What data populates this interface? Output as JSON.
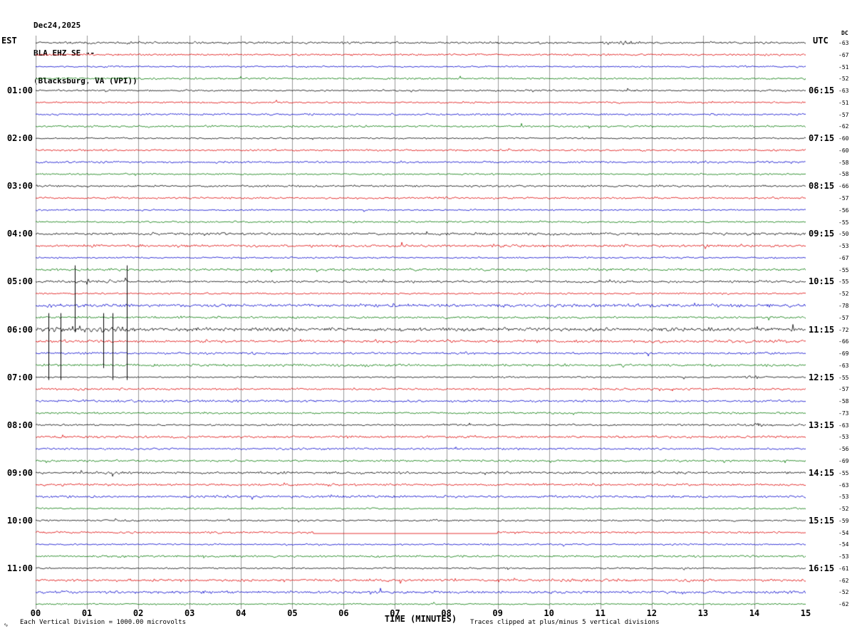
{
  "header": {
    "date": "Dec24,2025",
    "station": "BLA EHZ SE --",
    "location": "(Blacksburg, VA (VPI))"
  },
  "axes": {
    "left_label": "EST",
    "right_label": "UTC",
    "dc_label": "DC",
    "x_axis_title": "TIME (MINUTES)",
    "x_ticks": [
      "00",
      "01",
      "02",
      "03",
      "04",
      "05",
      "06",
      "07",
      "08",
      "09",
      "10",
      "11",
      "12",
      "13",
      "14",
      "15"
    ]
  },
  "footer": {
    "left_note": "Each Vertical Division = 1000.00 microvolts",
    "right_note": "Traces clipped at plus/minus 5 vertical divisions",
    "corner_mark": "∿"
  },
  "colors": {
    "black": "#000000",
    "red": "#dd0000",
    "blue": "#0000cc",
    "green": "#007700",
    "grid": "#999999"
  },
  "chart_data": {
    "type": "line",
    "description": "12-hour helicorder (webicorder) seismogram: 48 traces of 15 minutes each, reading left to right, top to bottom. Trace colors cycle black/red/blue/green. Traces show ambient seismic noise; black vertical event lines appear between 05:00 and 07:00 EST near minutes 0.2-1.8, and the red 10:00 EST trace flatlines between minutes 5.4 and 9.0.",
    "x_range_minutes": [
      0,
      15
    ],
    "noise_seed": 42,
    "rows": [
      {
        "color": "black",
        "dc": "-63"
      },
      {
        "color": "red",
        "dc": "-67"
      },
      {
        "color": "blue",
        "dc": "-51"
      },
      {
        "color": "green",
        "dc": "-52"
      },
      {
        "color": "black",
        "est": "01:00",
        "utc": "06:15",
        "dc": "-63"
      },
      {
        "color": "red",
        "dc": "-51"
      },
      {
        "color": "blue",
        "dc": "-57"
      },
      {
        "color": "green",
        "dc": "-62"
      },
      {
        "color": "black",
        "est": "02:00",
        "utc": "07:15",
        "dc": "-60"
      },
      {
        "color": "red",
        "dc": "-60"
      },
      {
        "color": "blue",
        "dc": "-58"
      },
      {
        "color": "green",
        "dc": "-58"
      },
      {
        "color": "black",
        "est": "03:00",
        "utc": "08:15",
        "dc": "-66"
      },
      {
        "color": "red",
        "dc": "-57"
      },
      {
        "color": "blue",
        "dc": "-56"
      },
      {
        "color": "green",
        "dc": "-55"
      },
      {
        "color": "black",
        "est": "04:00",
        "utc": "09:15",
        "dc": "-50"
      },
      {
        "color": "red",
        "dc": "-53"
      },
      {
        "color": "blue",
        "dc": "-67"
      },
      {
        "color": "green",
        "dc": "-55"
      },
      {
        "color": "black",
        "est": "05:00",
        "utc": "10:15",
        "dc": "-55",
        "gain": 1.3
      },
      {
        "color": "red",
        "dc": "-52",
        "gain": 1.15
      },
      {
        "color": "blue",
        "dc": "-78",
        "gain": 1.3
      },
      {
        "color": "green",
        "dc": "-57",
        "gain": 1.2
      },
      {
        "color": "black",
        "est": "06:00",
        "utc": "11:15",
        "dc": "-72",
        "gain": 1.45
      },
      {
        "color": "red",
        "dc": "-66",
        "gain": 1.2
      },
      {
        "color": "blue",
        "dc": "-69",
        "gain": 1.15
      },
      {
        "color": "green",
        "dc": "-63",
        "gain": 1.1
      },
      {
        "color": "black",
        "est": "07:00",
        "utc": "12:15",
        "dc": "-55"
      },
      {
        "color": "red",
        "dc": "-57"
      },
      {
        "color": "blue",
        "dc": "-58"
      },
      {
        "color": "green",
        "dc": "-73"
      },
      {
        "color": "black",
        "est": "08:00",
        "utc": "13:15",
        "dc": "-63"
      },
      {
        "color": "red",
        "dc": "-53"
      },
      {
        "color": "blue",
        "dc": "-56"
      },
      {
        "color": "green",
        "dc": "-69"
      },
      {
        "color": "black",
        "est": "09:00",
        "utc": "14:15",
        "dc": "-55"
      },
      {
        "color": "red",
        "dc": "-63"
      },
      {
        "color": "blue",
        "dc": "-53"
      },
      {
        "color": "green",
        "dc": "-52"
      },
      {
        "color": "black",
        "est": "10:00",
        "utc": "15:15",
        "dc": "-59"
      },
      {
        "color": "red",
        "dc": "-54"
      },
      {
        "color": "blue",
        "dc": "-54"
      },
      {
        "color": "green",
        "dc": "-53"
      },
      {
        "color": "black",
        "est": "11:00",
        "utc": "16:15",
        "dc": "-61"
      },
      {
        "color": "red",
        "dc": "-62"
      },
      {
        "color": "blue",
        "dc": "-52"
      },
      {
        "color": "green",
        "dc": "-62"
      }
    ],
    "events": [
      {
        "minute": 0.25,
        "row_from": 23,
        "row_to": 28
      },
      {
        "minute": 0.49,
        "row_from": 23,
        "row_to": 28
      },
      {
        "minute": 0.76,
        "row_from": 19,
        "row_to": 24
      },
      {
        "minute": 1.32,
        "row_from": 23,
        "row_to": 27
      },
      {
        "minute": 1.5,
        "row_from": 23,
        "row_to": 28
      },
      {
        "minute": 1.78,
        "row_from": 19,
        "row_to": 28
      }
    ],
    "flat_segment": {
      "row": 41,
      "from_minute": 5.4,
      "to_minute": 9.0
    },
    "bursts": [
      {
        "row": 0,
        "minute": 11.4,
        "width_min": 0.4,
        "gain": 2.2
      },
      {
        "row": 20,
        "minute": 1.0,
        "width_min": 1.2,
        "gain": 1.8
      },
      {
        "row": 24,
        "minute": 1.0,
        "width_min": 1.2,
        "gain": 1.9
      },
      {
        "row": 28,
        "minute": 14.0,
        "width_min": 0.4,
        "gain": 2.4
      },
      {
        "row": 32,
        "minute": 14.1,
        "width_min": 0.4,
        "gain": 2.6
      }
    ]
  }
}
